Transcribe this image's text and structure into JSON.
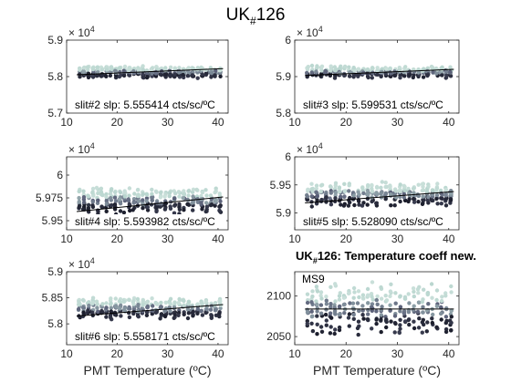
{
  "figure": {
    "title_main": "UK",
    "title_sub": "#",
    "title_tail": "126",
    "exponent_base": "× 10",
    "exponent_power": "4",
    "xlabel": "PMT Temperature (ºC)"
  },
  "colors": {
    "dark": "#1a1c2a",
    "mid": "#5a5f78",
    "light": "#b9d6cf",
    "fit": "#000000"
  },
  "chart_data": [
    {
      "type": "scatter",
      "id": "slit2",
      "label": "slit#2 slp: 5.555414 cts/sc/ºC",
      "xlim": [
        10,
        42
      ],
      "ylim": [
        57000,
        59000
      ],
      "yticks": [
        57000,
        58000,
        59000
      ],
      "ytick_labels": [
        "5.7",
        "5.8",
        "5.9"
      ],
      "xticks": [
        10,
        20,
        30,
        40
      ],
      "xtick_labels": [
        "10",
        "20",
        "30",
        "40"
      ],
      "show_exponent": true,
      "show_xlabel": false,
      "fit": {
        "x": [
          12,
          41
        ],
        "y": [
          58050,
          58220
        ]
      },
      "cluster": {
        "x_range": [
          12.5,
          40.5
        ],
        "y_center": 58130,
        "y_spread": 300
      }
    },
    {
      "type": "scatter",
      "id": "slit3",
      "label": "slit#3 slp: 5.599531 cts/sc/ºC",
      "xlim": [
        10,
        42
      ],
      "ylim": [
        58000,
        60000
      ],
      "yticks": [
        58000,
        59000,
        60000
      ],
      "ytick_labels": [
        "5.8",
        "5.9",
        "6"
      ],
      "xticks": [
        10,
        20,
        30,
        40
      ],
      "xtick_labels": [
        "10",
        "20",
        "30",
        "40"
      ],
      "show_exponent": true,
      "show_xlabel": false,
      "fit": {
        "x": [
          12,
          41
        ],
        "y": [
          59030,
          59200
        ]
      },
      "cluster": {
        "x_range": [
          12.5,
          40.5
        ],
        "y_center": 59120,
        "y_spread": 300
      }
    },
    {
      "type": "scatter",
      "id": "slit4",
      "label": "slit#4 slp: 5.593982 cts/sc/ºC",
      "xlim": [
        10,
        42
      ],
      "ylim": [
        59400,
        60200
      ],
      "yticks": [
        59500,
        59750,
        60000
      ],
      "ytick_labels": [
        "5.95",
        "5.975",
        "6"
      ],
      "xticks": [
        10,
        20,
        30,
        40
      ],
      "xtick_labels": [
        "10",
        "20",
        "30",
        "40"
      ],
      "show_exponent": true,
      "show_xlabel": false,
      "fit": {
        "x": [
          12,
          41
        ],
        "y": [
          59600,
          59760
        ]
      },
      "cluster": {
        "x_range": [
          12.5,
          40.5
        ],
        "y_center": 59720,
        "y_spread": 260
      }
    },
    {
      "type": "scatter",
      "id": "slit5",
      "label": "slit#5 slp: 5.528090 cts/sc/ºC",
      "xlim": [
        10,
        42
      ],
      "ylim": [
        58700,
        60000
      ],
      "yticks": [
        59000,
        59500,
        60000
      ],
      "ytick_labels": [
        "5.9",
        "5.95",
        "6"
      ],
      "xticks": [
        10,
        20,
        30,
        40
      ],
      "xtick_labels": [
        "10",
        "20",
        "30",
        "40"
      ],
      "show_exponent": true,
      "show_xlabel": false,
      "fit": {
        "x": [
          12,
          41
        ],
        "y": [
          59180,
          59380
        ]
      },
      "cluster": {
        "x_range": [
          12.5,
          40.5
        ],
        "y_center": 59330,
        "y_spread": 380
      }
    },
    {
      "type": "scatter",
      "id": "slit6",
      "label": "slit#6 slp: 5.558171 cts/sc/ºC",
      "xlim": [
        10,
        42
      ],
      "ylim": [
        57600,
        59000
      ],
      "yticks": [
        58000,
        58500,
        59000
      ],
      "ytick_labels": [
        "5.8",
        "5.85",
        "5.9"
      ],
      "xticks": [
        10,
        20,
        30,
        40
      ],
      "xtick_labels": [
        "10",
        "20",
        "30",
        "40"
      ],
      "show_exponent": true,
      "show_xlabel": true,
      "fit": {
        "x": [
          12,
          41
        ],
        "y": [
          58150,
          58370
        ]
      },
      "cluster": {
        "x_range": [
          12.5,
          40.5
        ],
        "y_center": 58300,
        "y_spread": 380
      }
    },
    {
      "type": "scatter",
      "id": "ms9",
      "title_main": "UK",
      "title_sub": "#",
      "title_tail": "126: Temperature coeff new.",
      "label": "MS9",
      "xlim": [
        10,
        42
      ],
      "ylim": [
        2040,
        2130
      ],
      "yticks": [
        2050,
        2100
      ],
      "ytick_labels": [
        "2050",
        "2100"
      ],
      "xticks": [
        10,
        20,
        30,
        40
      ],
      "xtick_labels": [
        "10",
        "20",
        "30",
        "40"
      ],
      "show_exponent": false,
      "show_xlabel": true,
      "fit": {
        "x": [
          12,
          41
        ],
        "y": [
          2084,
          2084
        ]
      },
      "cluster": {
        "x_range": [
          12.5,
          40.5
        ],
        "y_center": 2085,
        "y_spread": 58
      }
    }
  ]
}
